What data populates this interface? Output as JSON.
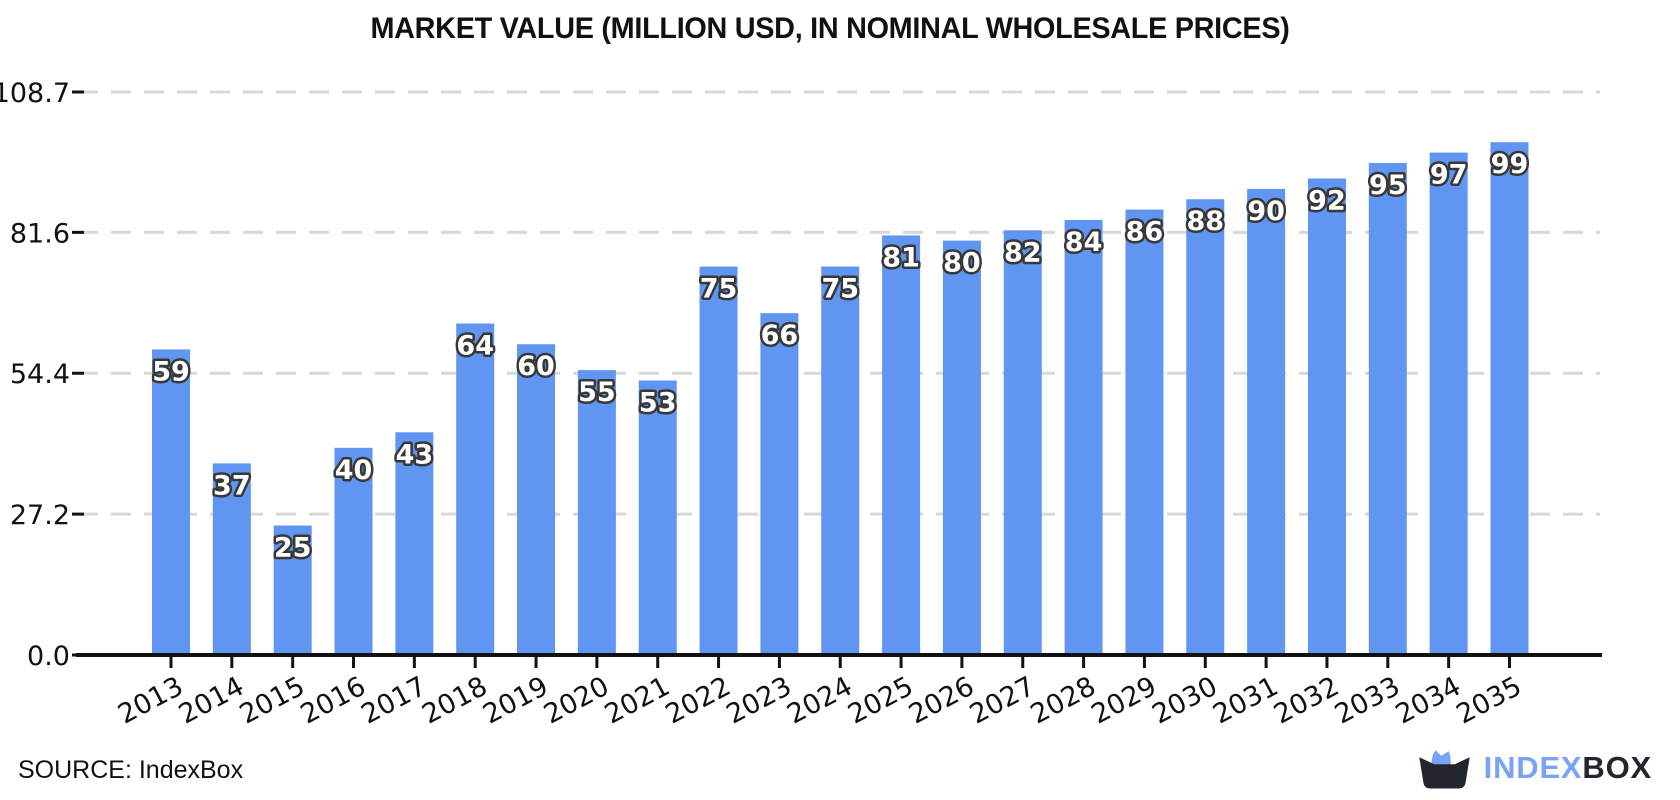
{
  "page": {
    "background": "#ffffff"
  },
  "chart_data": {
    "type": "bar",
    "title": "MARKET VALUE (MILLION USD, IN NOMINAL WHOLESALE PRICES)",
    "categories": [
      "2013",
      "2014",
      "2015",
      "2016",
      "2017",
      "2018",
      "2019",
      "2020",
      "2021",
      "2022",
      "2023",
      "2024",
      "2025",
      "2026",
      "2027",
      "2028",
      "2029",
      "2030",
      "2031",
      "2032",
      "2033",
      "2034",
      "2035"
    ],
    "values": [
      59,
      37,
      25,
      40,
      43,
      64,
      60,
      55,
      53,
      75,
      66,
      75,
      81,
      80,
      82,
      84,
      86,
      88,
      90,
      92,
      95,
      97,
      99
    ],
    "xlabel": "",
    "ylabel": "",
    "ylim": [
      0,
      108.7
    ],
    "yticks": [
      {
        "value": 0,
        "label": "0.0"
      },
      {
        "value": 27.2,
        "label": "27.2"
      },
      {
        "value": 54.4,
        "label": "54.4"
      },
      {
        "value": 81.6,
        "label": "81.6"
      },
      {
        "value": 108.7,
        "label": "108.7"
      }
    ],
    "grid": "horizontal-dashed",
    "legend": "none",
    "bar_labels_shown": true,
    "x_tick_rotation_deg": -28,
    "colors": {
      "bar_fill": "#6095f2",
      "bar_label_text": "#ffffff",
      "bar_label_outline": "#383838",
      "gridline": "#d8d8d8",
      "axis": "#111111",
      "tick_label": "#111111"
    }
  },
  "footer": {
    "source_label": "SOURCE: IndexBox",
    "logo": {
      "text_primary": "INDEX",
      "text_secondary": "BOX",
      "primary_color": "#7aa3f8",
      "secondary_color": "#23252f"
    }
  }
}
